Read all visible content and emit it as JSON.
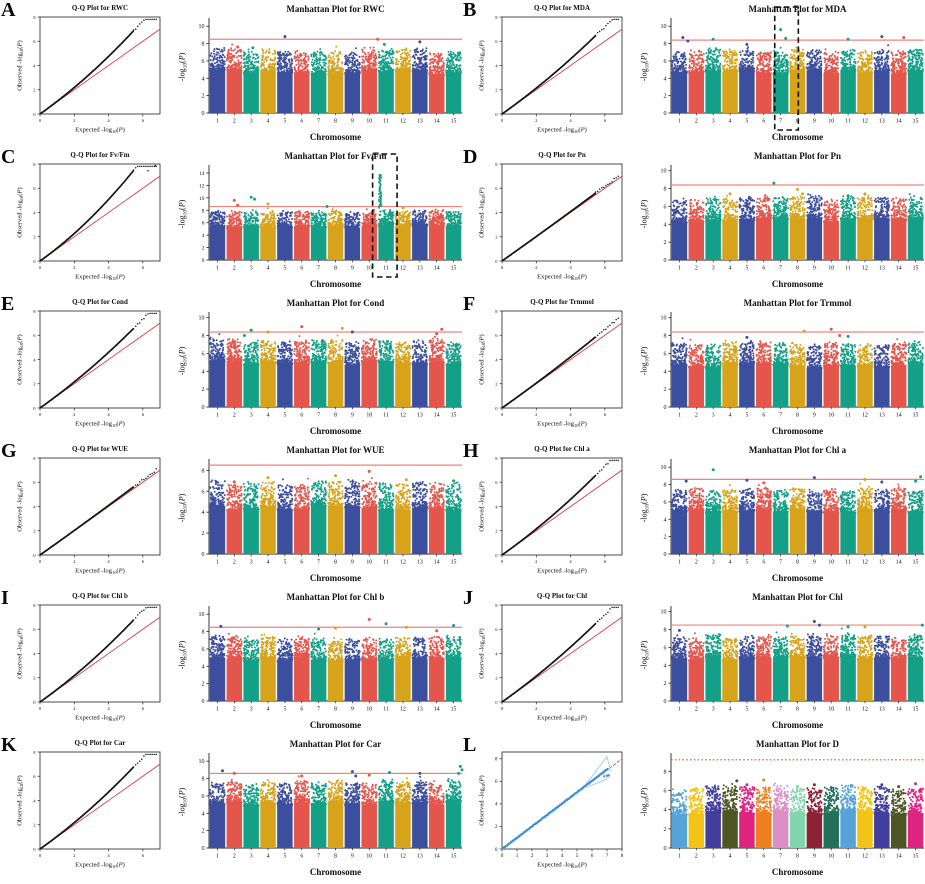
{
  "figure": {
    "background": "#ffffff",
    "text_color": "#111111",
    "palette_main": [
      "#3C4E9E",
      "#E4564C",
      "#13A087",
      "#D7A31A"
    ],
    "palette_L": [
      "#55A3D9",
      "#F3C317",
      "#413E9D",
      "#4E5524",
      "#DE2380",
      "#EF7E1E",
      "#DC8EC5",
      "#82D6AF",
      "#8D2136",
      "#20705A"
    ],
    "sig_line_color": "#F2837C",
    "sig_line_color_L": "#E34C4C",
    "qq_dot_color": "#151515",
    "qq_line_color": "#D93B3B",
    "qq_L_dot_color": "#3E8FD4",
    "qq_L_band_color": "#A9CFEC",
    "chromosomes": [
      "1",
      "2",
      "3",
      "4",
      "5",
      "6",
      "7",
      "8",
      "9",
      "10",
      "11",
      "12",
      "13",
      "14",
      "15"
    ],
    "xlabel_man": "Chromosome",
    "ylabel_man": "-log10(P)",
    "xlabel_qq": "Expected -log10(P)",
    "ylabel_qq": "Observed -log10(P)"
  },
  "chart_data": [
    {
      "panel": "A",
      "trait": "RWC",
      "qq": {
        "type": "scatter",
        "title": "Q-Q Plot for RWC",
        "xlabel": "Expected -log10(P)",
        "ylabel": "Observed -log10(P)",
        "xlim": [
          0,
          7
        ],
        "ylim": [
          0,
          8
        ],
        "xticks": [
          0,
          2,
          4,
          6
        ],
        "yticks": [
          0,
          2,
          4,
          6,
          8
        ],
        "deviation": 0.7
      },
      "manhattan": {
        "type": "scatter",
        "title": "Manhattan Plot for RWC",
        "xlabel": "Chromosome",
        "ylabel": "-log10(P)",
        "ylim": [
          0,
          10.6
        ],
        "yticks": [
          0,
          2,
          4,
          6,
          8,
          10
        ],
        "sig_threshold": 8.5,
        "base_top": 5.7,
        "peaks": [
          [
            2.2,
            7.6
          ],
          [
            3.1,
            7.5
          ],
          [
            5,
            8.8
          ],
          [
            10.5,
            8.5
          ],
          [
            10.9,
            7.9
          ],
          [
            13,
            8.2
          ]
        ]
      }
    },
    {
      "panel": "B",
      "trait": "MDA",
      "qq": {
        "type": "scatter",
        "title": "Q-Q Plot for MDA",
        "xlabel": "Expected -log10(P)",
        "ylabel": "Observed -log10(P)",
        "xlim": [
          0,
          7
        ],
        "ylim": [
          0,
          8
        ],
        "xticks": [
          0,
          2,
          4,
          6
        ],
        "yticks": [
          0,
          2,
          4,
          6,
          8
        ],
        "deviation": 0.5
      },
      "manhattan": {
        "type": "scatter",
        "title": "Manhattan Plot for MDA",
        "xlabel": "Chromosome",
        "ylabel": "-log10(P)",
        "ylim": [
          0,
          10.6
        ],
        "yticks": [
          0,
          2,
          4,
          6,
          8,
          10
        ],
        "sig_threshold": 8.4,
        "base_top": 5.7,
        "highlight_box": [
          6.15,
          7.55
        ],
        "peaks": [
          [
            1.2,
            8.7
          ],
          [
            1.5,
            8.3
          ],
          [
            3,
            8.5
          ],
          [
            5,
            7.9
          ],
          [
            7,
            9.6
          ],
          [
            7.3,
            8.6
          ],
          [
            11,
            8.5
          ],
          [
            13,
            8.8
          ],
          [
            14.3,
            8.7
          ]
        ]
      }
    },
    {
      "panel": "C",
      "trait": "Fv/Fm",
      "qq": {
        "type": "scatter",
        "title": "Q-Q Plot for Fv/Fm",
        "xlabel": "Expected -log10(P)",
        "ylabel": "Observed -log10(P)",
        "xlim": [
          0,
          7
        ],
        "ylim": [
          0,
          8
        ],
        "xticks": [
          0,
          2,
          4,
          6
        ],
        "yticks": [
          0,
          2,
          4,
          6,
          8
        ],
        "deviation": 1.0
      },
      "manhattan": {
        "type": "scatter",
        "title": "Manhattan Plot for Fv/Fm",
        "xlabel": "Chromosome",
        "ylabel": "-log10(P)",
        "ylim": [
          0,
          14.8
        ],
        "yticks": [
          0,
          2,
          4,
          6,
          8,
          10,
          12,
          14
        ],
        "sig_threshold": 8.6,
        "base_top": 6.4,
        "highlight_box": [
          9.7,
          11.15
        ],
        "cluster": [
          10.65,
          8.4,
          13.45
        ],
        "peaks": [
          [
            2,
            9.6
          ],
          [
            2.2,
            8.8
          ],
          [
            3,
            10.1
          ],
          [
            3.2,
            9.8
          ],
          [
            4,
            9.0
          ],
          [
            7.5,
            8.6
          ],
          [
            12,
            8.4
          ]
        ]
      }
    },
    {
      "panel": "D",
      "trait": "Pn",
      "qq": {
        "type": "scatter",
        "title": "Q-Q Plot for Pn",
        "xlabel": "Expected -log10(P)",
        "ylabel": "Observed -log10(P)",
        "xlim": [
          0,
          7
        ],
        "ylim": [
          0,
          8
        ],
        "xticks": [
          0,
          2,
          4,
          6
        ],
        "yticks": [
          0,
          2,
          4,
          6,
          8
        ],
        "deviation": 0.07
      },
      "manhattan": {
        "type": "scatter",
        "title": "Manhattan Plot for Pn",
        "xlabel": "Chromosome",
        "ylabel": "-log10(P)",
        "ylim": [
          0,
          10.3
        ],
        "yticks": [
          0,
          2,
          4,
          6,
          8,
          10
        ],
        "sig_threshold": 8.4,
        "base_top": 5.4,
        "peaks": [
          [
            4,
            7.4
          ],
          [
            6.6,
            8.6
          ],
          [
            8,
            7.9
          ],
          [
            8.3,
            7.4
          ],
          [
            11,
            7.2
          ],
          [
            12,
            7.4
          ]
        ]
      }
    },
    {
      "panel": "E",
      "trait": "Cond",
      "qq": {
        "type": "scatter",
        "title": "Q-Q Plot for Cond",
        "xlabel": "Expected -log10(P)",
        "ylabel": "Observed -log10(P)",
        "xlim": [
          0,
          7
        ],
        "ylim": [
          0,
          8
        ],
        "xticks": [
          0,
          2,
          4,
          6
        ],
        "yticks": [
          0,
          2,
          4,
          6,
          8
        ],
        "deviation": 0.55
      },
      "manhattan": {
        "type": "scatter",
        "title": "Manhattan Plot for Cond",
        "xlabel": "Chromosome",
        "ylabel": "-log10(P)",
        "ylim": [
          0,
          10.3
        ],
        "yticks": [
          0,
          2,
          4,
          6,
          8,
          10
        ],
        "sig_threshold": 8.4,
        "base_top": 5.9,
        "peaks": [
          [
            2.6,
            8.0
          ],
          [
            3,
            8.6
          ],
          [
            4,
            8.4
          ],
          [
            6,
            9.0
          ],
          [
            8.4,
            8.8
          ],
          [
            9,
            8.4
          ],
          [
            14,
            8.2
          ],
          [
            14.3,
            8.7
          ]
        ]
      }
    },
    {
      "panel": "F",
      "trait": "Trmmol",
      "qq": {
        "type": "scatter",
        "title": "Q-Q Plot for Trmmol",
        "xlabel": "Expected -log10(P)",
        "ylabel": "Observed -log10(P)",
        "xlim": [
          0,
          7
        ],
        "ylim": [
          0,
          8
        ],
        "xticks": [
          0,
          2,
          4,
          6
        ],
        "yticks": [
          0,
          2,
          4,
          6,
          8
        ],
        "deviation": 0.2
      },
      "manhattan": {
        "type": "scatter",
        "title": "Manhattan Plot for Trmmol",
        "xlabel": "Chromosome",
        "ylabel": "-log10(P)",
        "ylim": [
          0,
          10.3
        ],
        "yticks": [
          0,
          2,
          4,
          6,
          8,
          10
        ],
        "sig_threshold": 8.4,
        "base_top": 5.6,
        "peaks": [
          [
            5,
            7.8
          ],
          [
            8.4,
            8.5
          ],
          [
            10,
            8.7
          ],
          [
            10.5,
            8.0
          ],
          [
            11,
            7.9
          ]
        ]
      }
    },
    {
      "panel": "G",
      "trait": "WUE",
      "qq": {
        "type": "scatter",
        "title": "Q-Q Plot for WUE",
        "xlabel": "Expected -log10(P)",
        "ylabel": "Observed -log10(P)",
        "xlim": [
          0,
          7
        ],
        "ylim": [
          0,
          8
        ],
        "xticks": [
          0,
          2,
          4,
          6
        ],
        "yticks": [
          0,
          2,
          4,
          6,
          8
        ],
        "deviation": 0.08
      },
      "manhattan": {
        "type": "scatter",
        "title": "Manhattan Plot for WUE",
        "xlabel": "Chromosome",
        "ylabel": "-log10(P)",
        "ylim": [
          0,
          8.8
        ],
        "yticks": [
          0,
          2,
          4,
          6,
          8
        ],
        "sig_threshold": 8.5,
        "base_top": 5.4,
        "peaks": [
          [
            2,
            6.9
          ],
          [
            4,
            7.3
          ],
          [
            8,
            7.5
          ],
          [
            10,
            7.9
          ],
          [
            12.2,
            7.1
          ],
          [
            15,
            7.0
          ]
        ]
      }
    },
    {
      "panel": "H",
      "trait": "Chl a",
      "qq": {
        "type": "scatter",
        "title": "Q-Q Plot for Chl a",
        "xlabel": "Expected -log10(P)",
        "ylabel": "Observed -log10(P)",
        "xlim": [
          0,
          7
        ],
        "ylim": [
          0,
          8
        ],
        "xticks": [
          0,
          2,
          4,
          6
        ],
        "yticks": [
          0,
          2,
          4,
          6,
          8
        ],
        "deviation": 0.55
      },
      "manhattan": {
        "type": "scatter",
        "title": "Manhattan Plot for Chl a",
        "xlabel": "Chromosome",
        "ylabel": "-log10(P)",
        "ylim": [
          0,
          10.6
        ],
        "yticks": [
          0,
          2,
          4,
          6,
          8,
          10
        ],
        "sig_threshold": 8.6,
        "base_top": 5.9,
        "peaks": [
          [
            1.4,
            8.4
          ],
          [
            3,
            9.7
          ],
          [
            5,
            8.5
          ],
          [
            6,
            8.2
          ],
          [
            9,
            8.8
          ],
          [
            12,
            8.6
          ],
          [
            13,
            8.3
          ],
          [
            15,
            8.4
          ],
          [
            15.3,
            8.9
          ]
        ]
      }
    },
    {
      "panel": "I",
      "trait": "Chl b",
      "qq": {
        "type": "scatter",
        "title": "Q-Q Plot for Chl b",
        "xlabel": "Expected -log10(P)",
        "ylabel": "Observed -log10(P)",
        "xlim": [
          0,
          7
        ],
        "ylim": [
          0,
          8
        ],
        "xticks": [
          0,
          2,
          4,
          6
        ],
        "yticks": [
          0,
          2,
          4,
          6,
          8
        ],
        "deviation": 0.65
      },
      "manhattan": {
        "type": "scatter",
        "title": "Manhattan Plot for Chl b",
        "xlabel": "Chromosome",
        "ylabel": "-log10(P)",
        "ylim": [
          0,
          10.6
        ],
        "yticks": [
          0,
          2,
          4,
          6,
          8,
          10
        ],
        "sig_threshold": 8.5,
        "base_top": 5.8,
        "peaks": [
          [
            1.2,
            8.6
          ],
          [
            7,
            8.3
          ],
          [
            8,
            8.4
          ],
          [
            10,
            9.4
          ],
          [
            11,
            8.9
          ],
          [
            12.2,
            8.5
          ],
          [
            14,
            8.1
          ],
          [
            15,
            8.7
          ]
        ]
      }
    },
    {
      "panel": "J",
      "trait": "Chl",
      "qq": {
        "type": "scatter",
        "title": "Q-Q Plot for Chl",
        "xlabel": "Expected -log10(P)",
        "ylabel": "Observed -log10(P)",
        "xlim": [
          0,
          7
        ],
        "ylim": [
          0,
          8
        ],
        "xticks": [
          0,
          2,
          4,
          6
        ],
        "yticks": [
          0,
          2,
          4,
          6,
          8
        ],
        "deviation": 0.5
      },
      "manhattan": {
        "type": "scatter",
        "title": "Manhattan Plot for Chl",
        "xlabel": "Chromosome",
        "ylabel": "-log10(P)",
        "ylim": [
          0,
          10.3
        ],
        "yticks": [
          0,
          2,
          4,
          6,
          8,
          10
        ],
        "sig_threshold": 8.5,
        "base_top": 5.8,
        "peaks": [
          [
            1,
            7.9
          ],
          [
            7.4,
            8.4
          ],
          [
            9,
            8.9
          ],
          [
            9.3,
            8.5
          ],
          [
            11,
            8.3
          ],
          [
            12,
            8.3
          ],
          [
            15.4,
            8.5
          ]
        ]
      }
    },
    {
      "panel": "K",
      "trait": "Car",
      "qq": {
        "type": "scatter",
        "title": "Q-Q Plot for Car",
        "xlabel": "Expected -log10(P)",
        "ylabel": "Observed -log10(P)",
        "xlim": [
          0,
          7
        ],
        "ylim": [
          0,
          8
        ],
        "xticks": [
          0,
          2,
          4,
          6
        ],
        "yticks": [
          0,
          2,
          4,
          6,
          8
        ],
        "deviation": 0.65
      },
      "manhattan": {
        "type": "scatter",
        "title": "Manhattan Plot for Car",
        "xlabel": "Chromosome",
        "ylabel": "-log10(P)",
        "ylim": [
          0,
          10.6
        ],
        "yticks": [
          0,
          2,
          4,
          6,
          8,
          10
        ],
        "sig_threshold": 8.6,
        "base_top": 6.1,
        "peaks": [
          [
            1.3,
            8.9
          ],
          [
            2,
            8.6
          ],
          [
            6,
            8.3
          ],
          [
            9,
            8.8
          ],
          [
            9.2,
            8.3
          ],
          [
            10,
            8.4
          ],
          [
            11.2,
            8.7
          ],
          [
            13,
            8.6
          ],
          [
            15.3,
            8.6
          ],
          [
            15.4,
            9.4
          ],
          [
            15.5,
            9.0
          ]
        ]
      }
    },
    {
      "panel": "L",
      "trait": "D",
      "qq": {
        "type": "scatter",
        "title": "",
        "xlabel": "Expected -log10(P)",
        "ylabel": "Observed -log10(P)",
        "xlim": [
          0,
          8
        ],
        "ylim": [
          0,
          8.6
        ],
        "xticks": [
          0,
          1,
          2,
          3,
          4,
          5,
          6,
          7,
          8
        ],
        "yticks": [
          0,
          2,
          4,
          6,
          8
        ],
        "deviation": 0.04,
        "style": "L"
      },
      "manhattan": {
        "type": "scatter",
        "title": "Manhattan Plot for D",
        "xlabel": "Chromosome",
        "ylabel": "-log10(P)",
        "ylim": [
          0,
          9.6
        ],
        "yticks": [
          0,
          2,
          4,
          6,
          8
        ],
        "sig_threshold": 9.2,
        "sig_style": "dotted",
        "palette": "L",
        "base_top": 4.6,
        "peaks": [
          [
            2,
            6.2
          ],
          [
            4.4,
            7.0
          ],
          [
            5,
            6.6
          ],
          [
            6,
            7.1
          ],
          [
            8,
            6.4
          ],
          [
            9,
            6.6
          ],
          [
            10,
            6.3
          ],
          [
            12,
            6.2
          ],
          [
            13,
            6.6
          ],
          [
            14,
            6.4
          ],
          [
            15,
            6.7
          ]
        ]
      }
    }
  ]
}
